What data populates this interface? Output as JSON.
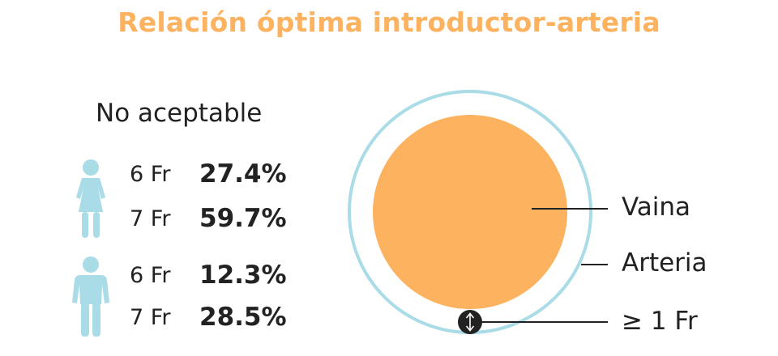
{
  "title": "Relación óptima introductor-arteria",
  "subtitle": "No aceptable",
  "groups": [
    {
      "icon": "female-person-icon",
      "rows": [
        {
          "size": "6 Fr",
          "value": "27.4%"
        },
        {
          "size": "7 Fr",
          "value": "59.7%"
        }
      ]
    },
    {
      "icon": "male-person-icon",
      "rows": [
        {
          "size": "6 Fr",
          "value": "12.3%"
        },
        {
          "size": "7 Fr",
          "value": "28.5%"
        }
      ]
    }
  ],
  "legend": {
    "vaina": "Vaina",
    "arteria": "Arteria",
    "gap": "≥ 1 Fr"
  },
  "colors": {
    "title": "#fdb25f",
    "sheath": "#fdb25f",
    "artery": "#a9dce6",
    "icon": "#a9dce6",
    "text": "#222222"
  }
}
